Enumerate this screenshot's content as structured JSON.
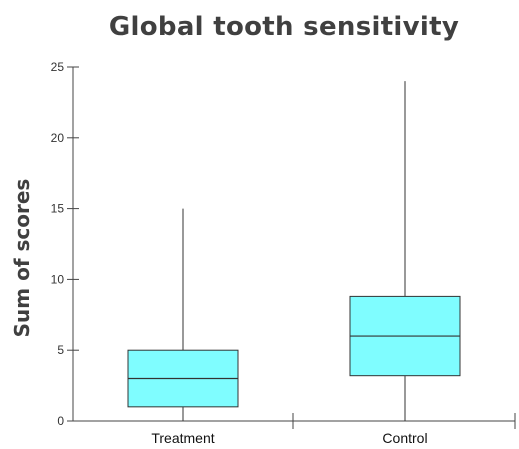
{
  "chart_data": {
    "type": "box",
    "title": "Global tooth sensitivity",
    "xlabel": "",
    "ylabel": "Sum of scores",
    "ylim": [
      0,
      25
    ],
    "yticks": [
      0,
      5,
      10,
      15,
      20,
      25
    ],
    "categories": [
      "Treatment",
      "Control"
    ],
    "boxes": [
      {
        "category": "Treatment",
        "min": 0,
        "q1": 1,
        "median": 3,
        "q3": 5,
        "max": 15
      },
      {
        "category": "Control",
        "min": 0,
        "q1": 3.2,
        "median": 6,
        "q3": 8.8,
        "max": 24
      }
    ],
    "box_color": "#7ffdff",
    "grid": false,
    "legend": "none"
  }
}
